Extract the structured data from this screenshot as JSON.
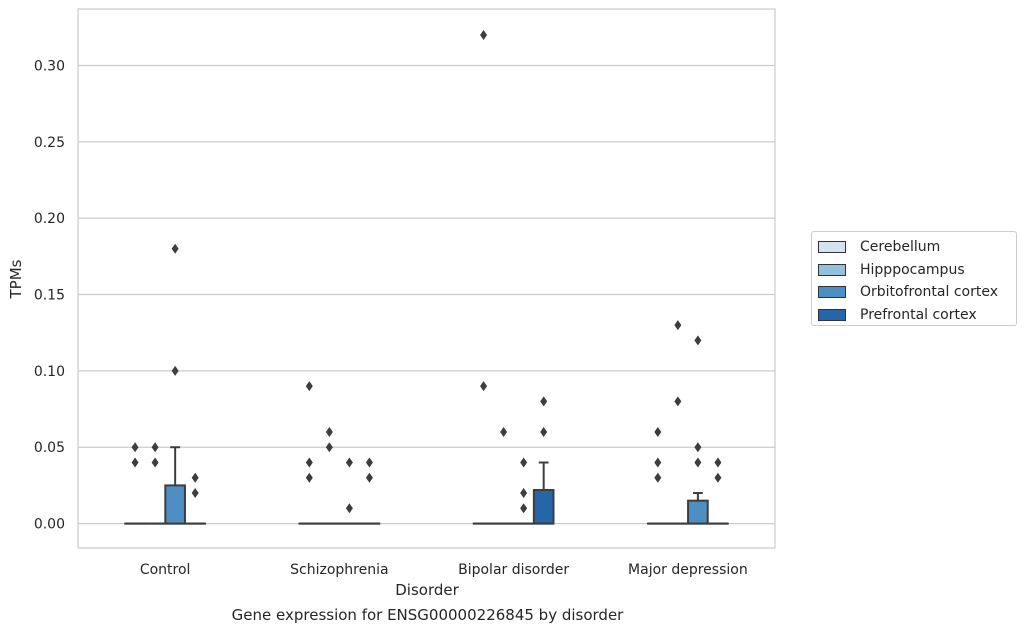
{
  "chart_data": {
    "type": "box",
    "title": "",
    "caption": "Gene expression for ENSG00000226845 by disorder",
    "xlabel": "Disorder",
    "ylabel": "TPMs",
    "ylim": [
      -0.016,
      0.337
    ],
    "yticks": [
      "0.00",
      "0.05",
      "0.10",
      "0.15",
      "0.20",
      "0.25",
      "0.30"
    ],
    "ytick_values": [
      0,
      0.05,
      0.1,
      0.15,
      0.2,
      0.25,
      0.3
    ],
    "categories": [
      "Control",
      "Schizophrenia",
      "Bipolar disorder",
      "Major depression"
    ],
    "grid": true,
    "legend_position": "right",
    "series": [
      {
        "name": "Cerebellum",
        "color": "#d4e3ef",
        "boxes": [
          {
            "q1": 0,
            "median": 0,
            "q3": 0,
            "whisker_low": 0,
            "whisker_high": 0,
            "outliers": [
              0.05,
              0.04
            ]
          },
          {
            "q1": 0,
            "median": 0,
            "q3": 0,
            "whisker_low": 0,
            "whisker_high": 0,
            "outliers": [
              0.09,
              0.04,
              0.03
            ]
          },
          {
            "q1": 0,
            "median": 0,
            "q3": 0,
            "whisker_low": 0,
            "whisker_high": 0,
            "outliers": [
              0.32,
              0.09
            ]
          },
          {
            "q1": 0,
            "median": 0,
            "q3": 0,
            "whisker_low": 0,
            "whisker_high": 0,
            "outliers": [
              0.06,
              0.04,
              0.03
            ]
          }
        ]
      },
      {
        "name": "Hipppocampus",
        "color": "#93c0dc",
        "boxes": [
          {
            "q1": 0,
            "median": 0,
            "q3": 0,
            "whisker_low": 0,
            "whisker_high": 0,
            "outliers": [
              0.05,
              0.04
            ]
          },
          {
            "q1": 0,
            "median": 0,
            "q3": 0,
            "whisker_low": 0,
            "whisker_high": 0,
            "outliers": [
              0.06,
              0.05
            ]
          },
          {
            "q1": 0,
            "median": 0,
            "q3": 0,
            "whisker_low": 0,
            "whisker_high": 0,
            "outliers": [
              0.06
            ]
          },
          {
            "q1": 0,
            "median": 0,
            "q3": 0,
            "whisker_low": 0,
            "whisker_high": 0,
            "outliers": [
              0.13,
              0.08
            ]
          }
        ]
      },
      {
        "name": "Orbitofrontal cortex",
        "color": "#4d8fc2",
        "boxes": [
          {
            "q1": 0,
            "median": 0,
            "q3": 0.025,
            "whisker_low": 0,
            "whisker_high": 0.05,
            "outliers": [
              0.18,
              0.1
            ]
          },
          {
            "q1": 0,
            "median": 0,
            "q3": 0,
            "whisker_low": 0,
            "whisker_high": 0,
            "outliers": [
              0.04,
              0.01
            ]
          },
          {
            "q1": 0,
            "median": 0,
            "q3": 0,
            "whisker_low": 0,
            "whisker_high": 0,
            "outliers": [
              0.04,
              0.02,
              0.01
            ]
          },
          {
            "q1": 0,
            "median": 0,
            "q3": 0.015,
            "whisker_low": 0,
            "whisker_high": 0.02,
            "outliers": [
              0.12,
              0.05,
              0.04
            ]
          }
        ]
      },
      {
        "name": "Prefrontal cortex",
        "color": "#2566a8",
        "boxes": [
          {
            "q1": 0,
            "median": 0,
            "q3": 0,
            "whisker_low": 0,
            "whisker_high": 0,
            "outliers": [
              0.03,
              0.02
            ]
          },
          {
            "q1": 0,
            "median": 0,
            "q3": 0,
            "whisker_low": 0,
            "whisker_high": 0,
            "outliers": [
              0.04,
              0.03
            ]
          },
          {
            "q1": 0,
            "median": 0,
            "q3": 0.022,
            "whisker_low": 0,
            "whisker_high": 0.04,
            "outliers": [
              0.08,
              0.06
            ]
          },
          {
            "q1": 0,
            "median": 0,
            "q3": 0,
            "whisker_low": 0,
            "whisker_high": 0,
            "outliers": [
              0.04,
              0.03
            ]
          }
        ]
      }
    ]
  }
}
